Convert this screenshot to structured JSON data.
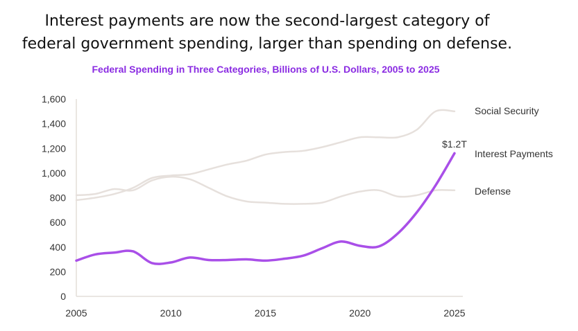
{
  "headline": {
    "line1": "Interest payments are now the second-largest category of",
    "line2": "federal government spending, larger than spending on defense."
  },
  "chart_data": {
    "type": "line",
    "title": "Federal Spending in Three Categories, Billions of U.S. Dollars, 2005 to 2025",
    "xlabel": "",
    "ylabel": "",
    "xlim": [
      2005,
      2025
    ],
    "ylim": [
      0,
      1600
    ],
    "x_ticks": [
      "2005",
      "2010",
      "2015",
      "2020",
      "2025"
    ],
    "y_ticks": [
      "0",
      "200",
      "400",
      "600",
      "800",
      "1,000",
      "1,200",
      "1,400",
      "1,600"
    ],
    "x": [
      2005,
      2006,
      2007,
      2008,
      2009,
      2010,
      2011,
      2012,
      2013,
      2014,
      2015,
      2016,
      2017,
      2018,
      2019,
      2020,
      2021,
      2022,
      2023,
      2024,
      2025
    ],
    "grid": false,
    "legend": "none",
    "series": [
      {
        "name": "Social Security",
        "color": "#e6e0dc",
        "values": [
          780,
          800,
          830,
          880,
          960,
          980,
          990,
          1030,
          1070,
          1100,
          1150,
          1170,
          1180,
          1210,
          1250,
          1290,
          1290,
          1290,
          1350,
          1500,
          1500
        ]
      },
      {
        "name": "Defense",
        "color": "#e6e0dc",
        "values": [
          820,
          830,
          870,
          860,
          940,
          970,
          950,
          880,
          810,
          770,
          760,
          750,
          750,
          760,
          810,
          850,
          860,
          810,
          820,
          860,
          860
        ]
      },
      {
        "name": "Interest Payments",
        "color": "#a94fe8",
        "values": [
          290,
          340,
          355,
          365,
          270,
          275,
          315,
          295,
          295,
          300,
          290,
          305,
          330,
          390,
          445,
          410,
          405,
          510,
          680,
          900,
          1160
        ],
        "end_label": "$1.2T"
      }
    ]
  }
}
